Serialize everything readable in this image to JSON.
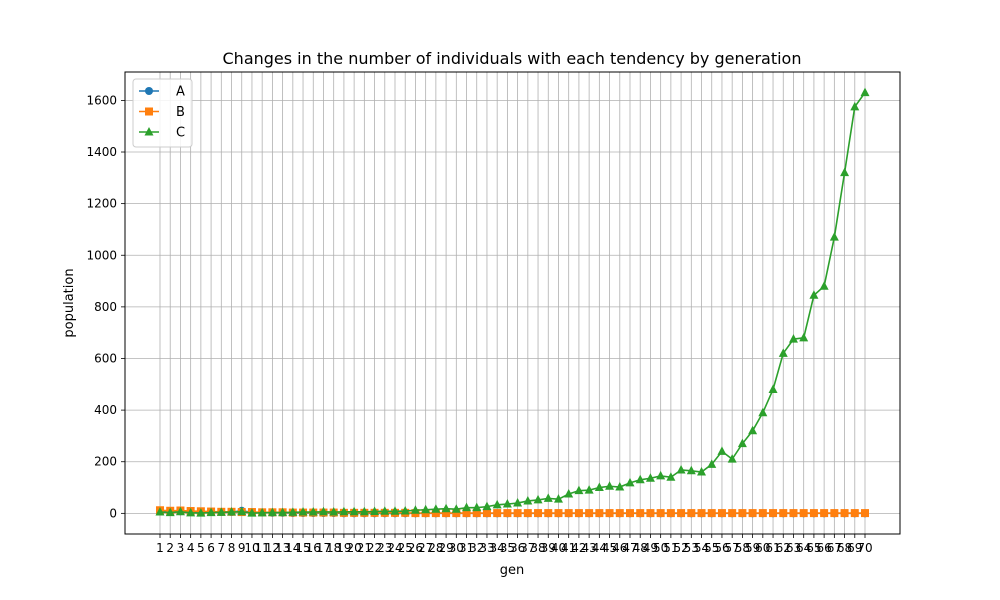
{
  "chart_data": {
    "type": "line",
    "title": "Changes in the number of individuals with each tendency by generation",
    "xlabel": "gen",
    "ylabel": "population",
    "ylim": [
      -80,
      1710
    ],
    "yticks": [
      0,
      200,
      400,
      600,
      800,
      1000,
      1200,
      1400,
      1600
    ],
    "grid": true,
    "legend_position": "top-left",
    "x": [
      1,
      2,
      3,
      4,
      5,
      6,
      7,
      8,
      9,
      10,
      11,
      12,
      13,
      14,
      15,
      16,
      17,
      18,
      19,
      20,
      21,
      22,
      23,
      24,
      25,
      26,
      27,
      28,
      29,
      30,
      31,
      32,
      33,
      34,
      35,
      36,
      37,
      38,
      39,
      40,
      41,
      42,
      43,
      44,
      45,
      46,
      47,
      48,
      49,
      50,
      51,
      52,
      53,
      54,
      55,
      56,
      57,
      58,
      59,
      60,
      61,
      62,
      63,
      64,
      65,
      66,
      67,
      68,
      69,
      70
    ],
    "series": [
      {
        "name": "A",
        "color": "#1f77b4",
        "marker": "circle",
        "values": [
          10,
          9,
          8,
          7,
          6,
          6,
          5,
          5,
          10,
          4,
          3,
          2,
          2,
          1,
          1,
          1,
          1,
          1,
          0,
          0,
          0,
          0,
          0,
          0,
          0,
          0,
          0,
          0,
          0,
          0,
          0,
          0,
          0,
          0,
          0,
          0,
          0,
          0,
          0,
          0,
          0,
          0,
          0,
          0,
          0,
          0,
          0,
          0,
          0,
          0,
          0,
          0,
          0,
          0,
          0,
          0,
          0,
          0,
          0,
          0,
          0,
          0,
          0,
          0,
          0,
          0,
          0,
          0,
          0,
          0
        ]
      },
      {
        "name": "B",
        "color": "#ff7f0e",
        "marker": "square",
        "values": [
          12,
          10,
          11,
          9,
          8,
          7,
          6,
          6,
          5,
          5,
          4,
          4,
          4,
          3,
          3,
          3,
          3,
          3,
          2,
          2,
          2,
          2,
          2,
          2,
          2,
          1,
          1,
          1,
          1,
          1,
          1,
          1,
          1,
          1,
          1,
          1,
          1,
          1,
          1,
          1,
          1,
          1,
          1,
          1,
          1,
          1,
          1,
          1,
          1,
          1,
          1,
          1,
          1,
          1,
          1,
          1,
          1,
          1,
          1,
          1,
          1,
          1,
          1,
          1,
          1,
          1,
          1,
          1,
          1,
          1
        ]
      },
      {
        "name": "C",
        "color": "#2ca02c",
        "marker": "triangle",
        "values": [
          5,
          3,
          6,
          2,
          1,
          3,
          4,
          5,
          6,
          1,
          2,
          3,
          3,
          4,
          5,
          5,
          6,
          5,
          6,
          6,
          6,
          7,
          8,
          8,
          9,
          12,
          14,
          16,
          18,
          16,
          22,
          22,
          26,
          33,
          36,
          40,
          48,
          52,
          58,
          55,
          75,
          88,
          90,
          100,
          105,
          102,
          118,
          130,
          136,
          145,
          140,
          168,
          165,
          160,
          190,
          240,
          210,
          270,
          320,
          390,
          480,
          620,
          675,
          680,
          845,
          880,
          1070,
          1320,
          1575,
          1630
        ]
      }
    ]
  }
}
